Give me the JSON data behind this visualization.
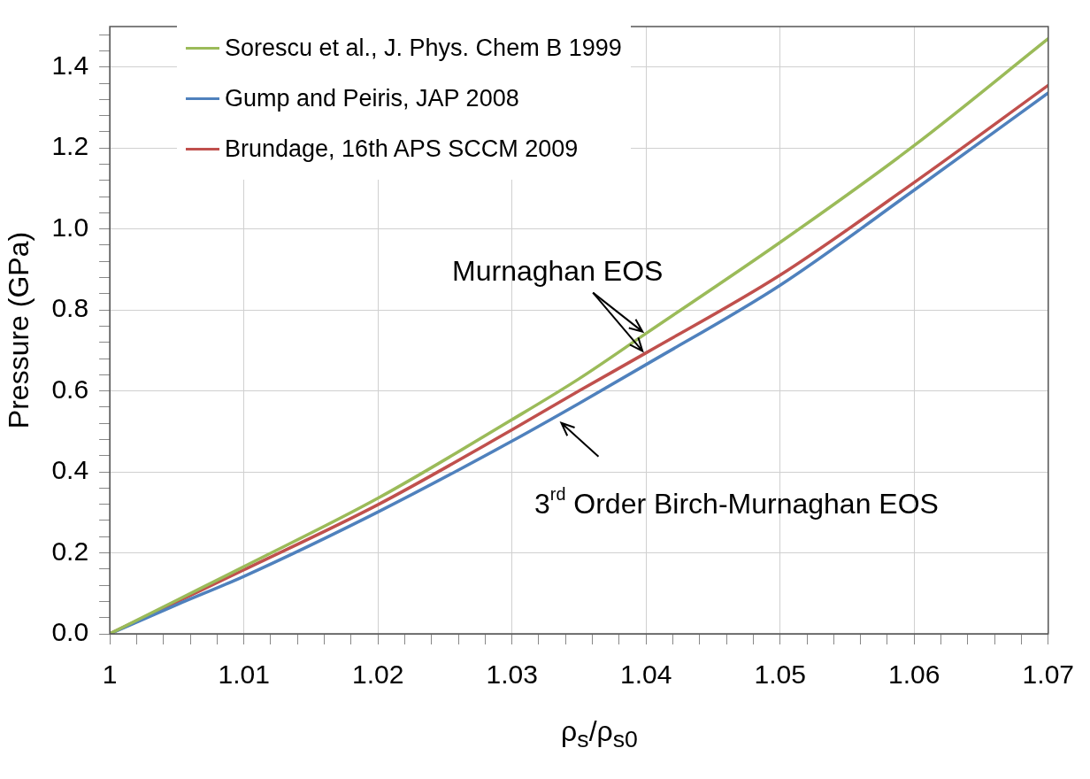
{
  "chart_data": {
    "type": "line",
    "xlabel": "ρ$_{s}$/ρ$_{s0}$",
    "ylabel": "Pressure (GPa)",
    "x": [
      1,
      1.005,
      1.01,
      1.02,
      1.03,
      1.035,
      1.04,
      1.05,
      1.06,
      1.07
    ],
    "series": [
      {
        "name": "Sorescu et al., J. Phys. Chem B 1999",
        "color": "#9bbb59",
        "values": [
          0,
          0.083,
          0.166,
          0.335,
          0.529,
          0.63,
          0.742,
          0.967,
          1.206,
          1.47
        ]
      },
      {
        "name": "Gump and Peiris, JAP 2008",
        "color": "#4f81bd",
        "values": [
          0,
          0.072,
          0.142,
          0.301,
          0.476,
          0.569,
          0.665,
          0.861,
          1.096,
          1.336
        ]
      },
      {
        "name": "Brundage, 16th APS SCCM 2009",
        "color": "#c0504d",
        "values": [
          0,
          0.079,
          0.158,
          0.319,
          0.504,
          0.6,
          0.694,
          0.886,
          1.115,
          1.355
        ]
      }
    ],
    "xlim": [
      1,
      1.07
    ],
    "xticks": [
      1,
      {
        "value": 1.002,
        "label": null
      },
      {
        "value": 1.004,
        "label": null
      },
      {
        "value": 1.006,
        "label": null
      },
      {
        "value": 1.008,
        "label": null
      },
      1.01,
      {
        "value": 1.012,
        "label": null
      },
      {
        "value": 1.014,
        "label": null
      },
      {
        "value": 1.016,
        "label": null
      },
      {
        "value": 1.018,
        "label": null
      },
      1.02,
      {
        "value": 1.022,
        "label": null
      },
      {
        "value": 1.024,
        "label": null
      },
      {
        "value": 1.026,
        "label": null
      },
      {
        "value": 1.028,
        "label": null
      },
      1.03,
      {
        "value": 1.032,
        "label": null
      },
      {
        "value": 1.034,
        "label": null
      },
      {
        "value": 1.036,
        "label": null
      },
      {
        "value": 1.038,
        "label": null
      },
      1.04,
      {
        "value": 1.042,
        "label": null
      },
      {
        "value": 1.044,
        "label": null
      },
      {
        "value": 1.046,
        "label": null
      },
      {
        "value": 1.048,
        "label": null
      },
      1.05,
      {
        "value": 1.052,
        "label": null
      },
      {
        "value": 1.054,
        "label": null
      },
      {
        "value": 1.056,
        "label": null
      },
      {
        "value": 1.058,
        "label": null
      },
      1.06,
      {
        "value": 1.062,
        "label": null
      },
      {
        "value": 1.064,
        "label": null
      },
      {
        "value": 1.066,
        "label": null
      },
      {
        "value": 1.068,
        "label": null
      },
      1.07
    ],
    "ylim": [
      0,
      1.5
    ],
    "yticks": [
      {
        "value": 0,
        "label": "0.0"
      },
      {
        "value": 0.04,
        "label": null
      },
      {
        "value": 0.08,
        "label": null
      },
      {
        "value": 0.12,
        "label": null
      },
      {
        "value": 0.16,
        "label": null
      },
      {
        "value": 0.2,
        "label": "0.2"
      },
      {
        "value": 0.24,
        "label": null
      },
      {
        "value": 0.28,
        "label": null
      },
      {
        "value": 0.32,
        "label": null
      },
      {
        "value": 0.36,
        "label": null
      },
      {
        "value": 0.4,
        "label": "0.4"
      },
      {
        "value": 0.44,
        "label": null
      },
      {
        "value": 0.48,
        "label": null
      },
      {
        "value": 0.52,
        "label": null
      },
      {
        "value": 0.56,
        "label": null
      },
      {
        "value": 0.6,
        "label": "0.6"
      },
      {
        "value": 0.64,
        "label": null
      },
      {
        "value": 0.68,
        "label": null
      },
      {
        "value": 0.72,
        "label": null
      },
      {
        "value": 0.76,
        "label": null
      },
      {
        "value": 0.8,
        "label": "0.8"
      },
      {
        "value": 0.84,
        "label": null
      },
      {
        "value": 0.88,
        "label": null
      },
      {
        "value": 0.92,
        "label": null
      },
      {
        "value": 0.96,
        "label": null
      },
      {
        "value": 1.0,
        "label": "1.0"
      },
      {
        "value": 1.04,
        "label": null
      },
      {
        "value": 1.08,
        "label": null
      },
      {
        "value": 1.12,
        "label": null
      },
      {
        "value": 1.16,
        "label": null
      },
      {
        "value": 1.2,
        "label": "1.2"
      },
      {
        "value": 1.24,
        "label": null
      },
      {
        "value": 1.28,
        "label": null
      },
      {
        "value": 1.32,
        "label": null
      },
      {
        "value": 1.36,
        "label": null
      },
      {
        "value": 1.4,
        "label": "1.4"
      },
      {
        "value": 1.44,
        "label": null
      },
      {
        "value": 1.48,
        "label": null
      }
    ],
    "annotations": [
      {
        "text": "Murnaghan EOS",
        "x": 1.04,
        "y": 0.742
      },
      {
        "text": "3$^{rd}$ Order Birch-Murnaghan EOS",
        "x": 1.035,
        "y": 0.569
      }
    ],
    "grid": true,
    "legend": "top left",
    "marker": "none",
    "line_style": "solid"
  }
}
